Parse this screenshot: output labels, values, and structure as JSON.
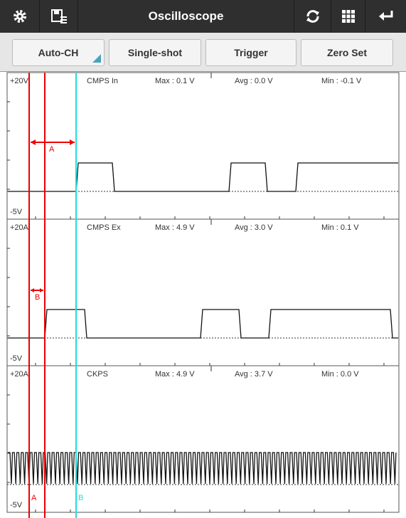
{
  "toolbar": {
    "title": "Oscilloscope"
  },
  "buttons": [
    "Auto-CH",
    "Single-shot",
    "Trigger",
    "Zero Set"
  ],
  "channels": [
    {
      "scale_top": "+20V",
      "scale_bottom": "-5V",
      "name": "CMPS In",
      "max": "Max : 0.1 V",
      "avg": "Avg : 0.0 V",
      "min": "Min : -0.1 V"
    },
    {
      "scale_top": "+20A",
      "scale_bottom": "-5V",
      "name": "CMPS Ex",
      "max": "Max : 4.9 V",
      "avg": "Avg : 3.0 V",
      "min": "Min : 0.1 V"
    },
    {
      "scale_top": "+20A",
      "scale_bottom": "-5V",
      "name": "CKPS",
      "max": "Max  : 4.9 V",
      "avg": "Avg : 3.7 V",
      "min": "Min : 0.0 V"
    }
  ],
  "cursors": {
    "measure_a": "A",
    "measure_b": "B",
    "cursor_a": "A",
    "cursor_b": "B"
  }
}
